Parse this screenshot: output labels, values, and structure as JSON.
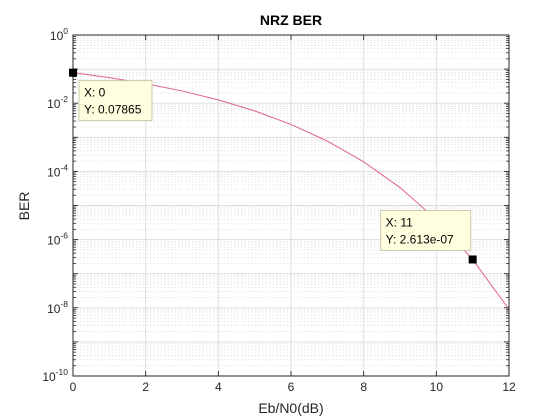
{
  "chart_data": {
    "type": "line",
    "title": "NRZ BER",
    "xlabel": "Eb/N0(dB)",
    "ylabel": "BER",
    "xlim": [
      0,
      12
    ],
    "ylim": [
      1e-10,
      1
    ],
    "yscale": "log",
    "grid": true,
    "minor_grid": true,
    "x_ticks": [
      0,
      2,
      4,
      6,
      8,
      10,
      12
    ],
    "y_ticks": [
      {
        "base": "10",
        "exp": "0",
        "value": 1
      },
      {
        "base": "10",
        "exp": "-2",
        "value": 0.01
      },
      {
        "base": "10",
        "exp": "-4",
        "value": 0.0001
      },
      {
        "base": "10",
        "exp": "-6",
        "value": 1e-06
      },
      {
        "base": "10",
        "exp": "-8",
        "value": 1e-08
      },
      {
        "base": "10",
        "exp": "-10",
        "value": 1e-10
      }
    ],
    "series": [
      {
        "color": "#e0608c",
        "x": [
          0,
          1,
          2,
          3,
          4,
          5,
          6,
          7,
          8,
          9,
          10,
          11,
          12
        ],
        "y": [
          0.07865,
          0.05628,
          0.03751,
          0.02288,
          0.0125,
          0.005954,
          0.002388,
          0.0007727,
          0.0001909,
          3.363e-05,
          3.872e-06,
          2.613e-07,
          9.006e-09
        ]
      }
    ],
    "datatips": [
      {
        "x": 0,
        "y": 0.07865,
        "x_text": "X: 0",
        "y_text": "Y: 0.07865"
      },
      {
        "x": 11,
        "y": 2.613e-07,
        "x_text": "X: 11",
        "y_text": "Y: 2.613e-07"
      }
    ]
  },
  "colors": {
    "axes": "#262626",
    "grid": "#dcdcdc",
    "datatip_bg": "#ffffe0",
    "datatip_border": "#c8c8aa",
    "marker": "#000000"
  }
}
